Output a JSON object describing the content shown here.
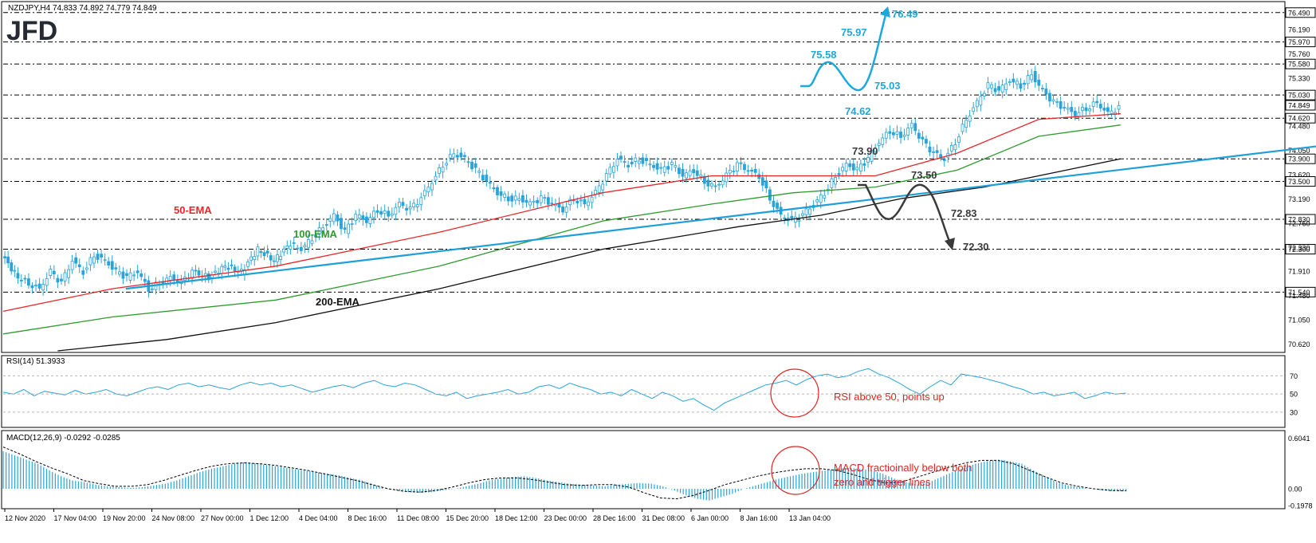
{
  "header": {
    "symbol_line": "NZDJPY,H4  74.833 74.892 74.779 74.849",
    "logo_text": "JFD"
  },
  "colors": {
    "candle": "#29a3d8",
    "ema50": "#e8262a",
    "ema100": "#2e9a2e",
    "ema200": "#111111",
    "trend": "#1e9fd9",
    "bull_scenario": "#1ba9dd",
    "bear_scenario": "#3a3a3a",
    "annotation": "#e02424"
  },
  "chart_data": [
    {
      "type": "line",
      "name": "price",
      "ylim": [
        70.5,
        76.6
      ],
      "price_axis_ticks": [
        "76.490",
        "76.190",
        "75.970",
        "75.760",
        "75.580",
        "75.330",
        "75.030",
        "74.849",
        "74.620",
        "74.480",
        "74.050",
        "73.900",
        "73.620",
        "73.500",
        "73.190",
        "72.830",
        "72.760",
        "72.300",
        "72.330",
        "71.910",
        "71.540",
        "71.480",
        "71.050",
        "70.620"
      ],
      "price_axis_boxed": [
        "76.490",
        "75.970",
        "75.580",
        "75.030",
        "74.849",
        "74.620",
        "73.900",
        "73.500",
        "72.830",
        "72.300",
        "71.540"
      ],
      "level_lines": [
        76.49,
        75.97,
        75.58,
        75.03,
        74.62,
        73.9,
        73.5,
        72.83,
        72.3,
        71.54
      ],
      "x_labels": [
        "12 Nov 2020",
        "17 Nov 04:00",
        "19 Nov 20:00",
        "24 Nov 08:00",
        "27 Nov 00:00",
        "1 Dec 12:00",
        "4 Dec 04:00",
        "8 Dec 16:00",
        "11 Dec 08:00",
        "15 Dec 20:00",
        "18 Dec 12:00",
        "23 Dec 00:00",
        "28 Dec 16:00",
        "31 Dec 08:00",
        "6 Jan 00:00",
        "8 Jan 16:00",
        "13 Jan 04:00"
      ],
      "close_path": [
        [
          0,
          72.2
        ],
        [
          6,
          71.8
        ],
        [
          10,
          71.7
        ],
        [
          14,
          71.6
        ],
        [
          18,
          71.9
        ],
        [
          22,
          71.7
        ],
        [
          26,
          72.1
        ],
        [
          30,
          71.9
        ],
        [
          34,
          72.2
        ],
        [
          38,
          72.1
        ],
        [
          42,
          71.9
        ],
        [
          46,
          71.8
        ],
        [
          50,
          71.9
        ],
        [
          54,
          71.6
        ],
        [
          58,
          71.7
        ],
        [
          62,
          71.8
        ],
        [
          66,
          71.7
        ],
        [
          70,
          71.9
        ],
        [
          76,
          71.8
        ],
        [
          82,
          72.0
        ],
        [
          88,
          71.9
        ],
        [
          94,
          72.3
        ],
        [
          100,
          72.1
        ],
        [
          106,
          72.4
        ],
        [
          110,
          72.3
        ],
        [
          114,
          72.5
        ],
        [
          118,
          72.7
        ],
        [
          122,
          72.9
        ],
        [
          126,
          72.6
        ],
        [
          130,
          72.9
        ],
        [
          134,
          72.8
        ],
        [
          138,
          73.0
        ],
        [
          142,
          72.9
        ],
        [
          146,
          73.1
        ],
        [
          150,
          73.0
        ],
        [
          154,
          73.2
        ],
        [
          158,
          73.5
        ],
        [
          162,
          73.8
        ],
        [
          166,
          74.0
        ],
        [
          170,
          73.9
        ],
        [
          174,
          73.7
        ],
        [
          178,
          73.5
        ],
        [
          182,
          73.3
        ],
        [
          186,
          73.2
        ],
        [
          190,
          73.2
        ],
        [
          194,
          73.1
        ],
        [
          198,
          73.2
        ],
        [
          202,
          73.1
        ],
        [
          206,
          73.0
        ],
        [
          210,
          73.2
        ],
        [
          214,
          73.1
        ],
        [
          218,
          73.3
        ],
        [
          222,
          73.6
        ],
        [
          226,
          73.9
        ],
        [
          230,
          73.8
        ],
        [
          234,
          73.9
        ],
        [
          238,
          73.8
        ],
        [
          242,
          73.7
        ],
        [
          246,
          73.8
        ],
        [
          250,
          73.6
        ],
        [
          254,
          73.7
        ],
        [
          258,
          73.5
        ],
        [
          262,
          73.4
        ],
        [
          266,
          73.6
        ],
        [
          270,
          73.8
        ],
        [
          274,
          73.7
        ],
        [
          278,
          73.6
        ],
        [
          282,
          73.2
        ],
        [
          286,
          72.9
        ],
        [
          290,
          72.8
        ],
        [
          294,
          72.9
        ],
        [
          298,
          73.1
        ],
        [
          302,
          73.3
        ],
        [
          306,
          73.6
        ],
        [
          310,
          73.8
        ],
        [
          314,
          73.7
        ],
        [
          318,
          73.9
        ],
        [
          322,
          74.2
        ],
        [
          326,
          74.4
        ],
        [
          330,
          74.3
        ],
        [
          334,
          74.5
        ],
        [
          338,
          74.2
        ],
        [
          342,
          74.0
        ],
        [
          346,
          73.9
        ],
        [
          350,
          74.2
        ],
        [
          354,
          74.6
        ],
        [
          358,
          74.9
        ],
        [
          362,
          75.2
        ],
        [
          366,
          75.1
        ],
        [
          370,
          75.3
        ],
        [
          374,
          75.2
        ],
        [
          378,
          75.4
        ],
        [
          382,
          75.1
        ],
        [
          386,
          74.9
        ],
        [
          390,
          74.8
        ],
        [
          394,
          74.7
        ],
        [
          398,
          74.8
        ],
        [
          402,
          74.9
        ],
        [
          406,
          74.7
        ],
        [
          410,
          74.8
        ]
      ],
      "series": [
        {
          "name": "50-EMA",
          "points": [
            [
              0,
              71.2
            ],
            [
              40,
              71.6
            ],
            [
              100,
              72.0
            ],
            [
              160,
              72.6
            ],
            [
              220,
              73.3
            ],
            [
              260,
              73.6
            ],
            [
              290,
              73.6
            ],
            [
              320,
              73.6
            ],
            [
              350,
              74.0
            ],
            [
              380,
              74.6
            ],
            [
              410,
              74.7
            ]
          ]
        },
        {
          "name": "100-EMA",
          "points": [
            [
              0,
              70.8
            ],
            [
              40,
              71.1
            ],
            [
              100,
              71.4
            ],
            [
              160,
              72.0
            ],
            [
              220,
              72.8
            ],
            [
              260,
              73.1
            ],
            [
              290,
              73.3
            ],
            [
              320,
              73.4
            ],
            [
              350,
              73.7
            ],
            [
              380,
              74.3
            ],
            [
              410,
              74.5
            ]
          ]
        },
        {
          "name": "200-EMA",
          "points": [
            [
              20,
              70.5
            ],
            [
              60,
              70.7
            ],
            [
              100,
              71.0
            ],
            [
              160,
              71.6
            ],
            [
              220,
              72.3
            ],
            [
              270,
              72.7
            ],
            [
              300,
              72.9
            ],
            [
              330,
              73.2
            ],
            [
              360,
              73.4
            ],
            [
              390,
              73.7
            ],
            [
              410,
              73.9
            ]
          ]
        }
      ],
      "trendline": [
        [
          45,
          71.6
        ],
        [
          530,
          74.4
        ]
      ],
      "labels": [
        {
          "text": "50-EMA",
          "series": "ema50"
        },
        {
          "text": "100-EMA",
          "series": "ema100"
        },
        {
          "text": "200-EMA",
          "series": "ema200"
        }
      ],
      "bull_scenario": {
        "labels": [
          "76.49",
          "75.97",
          "75.58",
          "75.03",
          "74.62"
        ],
        "path": [
          [
            413,
            75.15
          ],
          [
            418,
            75.18
          ],
          [
            423,
            75.5
          ],
          [
            428,
            75.45
          ],
          [
            433,
            75.05
          ],
          [
            438,
            75.3
          ],
          [
            445,
            76.4
          ]
        ]
      },
      "bear_scenario": {
        "labels": [
          "73.90",
          "73.50",
          "72.83",
          "72.30"
        ],
        "path": [
          [
            430,
            73.45
          ],
          [
            440,
            72.9
          ],
          [
            450,
            73.45
          ],
          [
            460,
            72.3
          ]
        ]
      }
    },
    {
      "type": "line",
      "name": "RSI(14)",
      "header": "RSI(14) 51.3933",
      "ylim": [
        15,
        80
      ],
      "ticks": [
        "70",
        "50",
        "30"
      ],
      "values": [
        52,
        50,
        55,
        48,
        53,
        51,
        49,
        54,
        50,
        52,
        55,
        50,
        48,
        52,
        56,
        58,
        55,
        60,
        62,
        58,
        60,
        57,
        55,
        60,
        63,
        60,
        62,
        58,
        60,
        56,
        52,
        55,
        58,
        60,
        57,
        62,
        65,
        60,
        58,
        62,
        60,
        55,
        50,
        48,
        52,
        45,
        48,
        50,
        52,
        55,
        50,
        52,
        58,
        60,
        56,
        62,
        58,
        55,
        50,
        52,
        48,
        55,
        50,
        45,
        52,
        48,
        42,
        45,
        38,
        32,
        40,
        45,
        50,
        55,
        60,
        62,
        65,
        60,
        66,
        70,
        72,
        68,
        70,
        75,
        78,
        72,
        68,
        62,
        55,
        50,
        58,
        65,
        60,
        72,
        70,
        68,
        65,
        62,
        58,
        55,
        50,
        52,
        48,
        50,
        52,
        45,
        48,
        52,
        50,
        51
      ],
      "annotation": "RSI above 50, points up"
    },
    {
      "type": "bar",
      "name": "MACD",
      "header": "MACD(12,26,9) -0.0292 -0.0285",
      "ylim": [
        -0.2,
        0.62
      ],
      "ticks": [
        "0.6041",
        "0.00",
        "-0.1978"
      ],
      "values": [
        0.45,
        0.4,
        0.35,
        0.3,
        0.22,
        0.15,
        0.1,
        0.08,
        0.05,
        0.03,
        0.02,
        0.01,
        0.02,
        0.04,
        0.06,
        0.1,
        0.15,
        0.2,
        0.24,
        0.27,
        0.3,
        0.32,
        0.3,
        0.28,
        0.26,
        0.24,
        0.22,
        0.2,
        0.18,
        0.16,
        0.13,
        0.1,
        0.05,
        0.0,
        -0.02,
        -0.04,
        -0.05,
        -0.04,
        -0.02,
        0.0,
        0.03,
        0.06,
        0.1,
        0.12,
        0.14,
        0.15,
        0.13,
        0.1,
        0.08,
        0.06,
        0.05,
        0.04,
        0.03,
        0.05,
        0.06,
        0.07,
        0.06,
        0.03,
        -0.02,
        -0.08,
        -0.12,
        -0.14,
        -0.1,
        -0.06,
        0.0,
        0.04,
        0.08,
        0.12,
        0.15,
        0.18,
        0.2,
        0.22,
        0.24,
        0.25,
        0.24,
        0.22,
        0.18,
        0.12,
        0.08,
        0.05,
        0.08,
        0.14,
        0.2,
        0.25,
        0.3,
        0.33,
        0.35,
        0.33,
        0.3,
        0.22,
        0.15,
        0.08,
        0.04,
        0.02,
        0.0,
        -0.02,
        -0.03,
        -0.03
      ],
      "signal": [
        0.5,
        0.42,
        0.33,
        0.25,
        0.18,
        0.1,
        0.06,
        0.03,
        0.03,
        0.05,
        0.1,
        0.16,
        0.22,
        0.27,
        0.3,
        0.31,
        0.3,
        0.28,
        0.25,
        0.22,
        0.18,
        0.14,
        0.1,
        0.05,
        0.0,
        -0.03,
        -0.04,
        -0.02,
        0.02,
        0.07,
        0.11,
        0.13,
        0.13,
        0.11,
        0.08,
        0.05,
        0.04,
        0.05,
        0.05,
        0.02,
        -0.05,
        -0.11,
        -0.12,
        -0.08,
        -0.02,
        0.05,
        0.1,
        0.15,
        0.19,
        0.22,
        0.24,
        0.24,
        0.22,
        0.17,
        0.11,
        0.07,
        0.08,
        0.14,
        0.2,
        0.26,
        0.31,
        0.34,
        0.34,
        0.3,
        0.22,
        0.14,
        0.07,
        0.03,
        0.0,
        -0.02,
        -0.025
      ],
      "annotation_lines": [
        "MACD fractioinally below both",
        "zero and trigger lines"
      ]
    }
  ]
}
